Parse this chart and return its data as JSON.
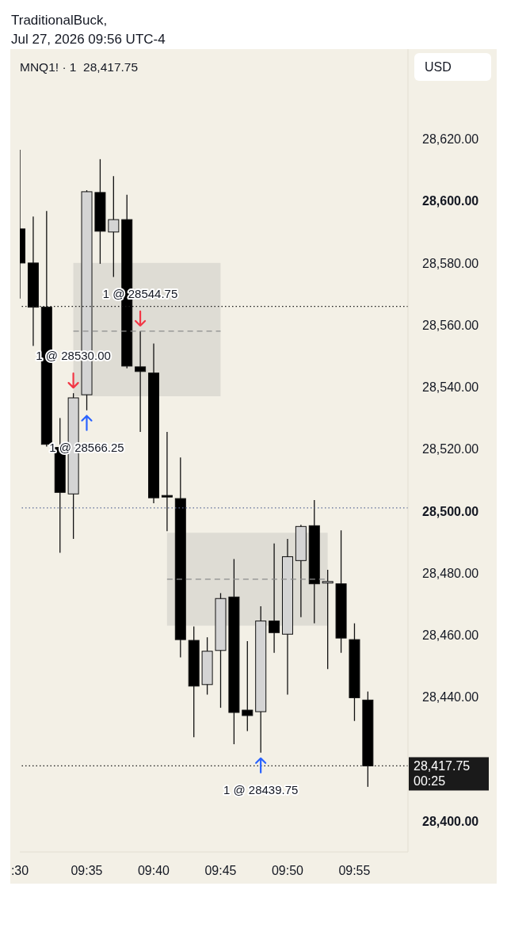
{
  "chart_data": {
    "type": "candlestick",
    "title": "MNQ1! · 1  28,417.75",
    "ylabel": "USD",
    "annotations": [
      "TraditionalBuck,",
      "Jul 27, 2026 09:56 UTC-4",
      {
        "text": "1 @ 28530.00",
        "x": "2026-07-27T09:34",
        "y": 28538
      },
      {
        "text": "1 @ 28566.25",
        "x": "2026-07-27T09:35",
        "y": 28532.5
      },
      {
        "text": "1 @ 28544.75",
        "x": "2026-07-27T09:39",
        "y": 28558
      },
      {
        "text": "1 @ 28439.75",
        "x": "2026-07-27T09:48",
        "y": 28422
      }
    ],
    "x": [
      "2026-07-27T09:30",
      "2026-07-27T09:31",
      "2026-07-27T09:32",
      "2026-07-27T09:33",
      "2026-07-27T09:34",
      "2026-07-27T09:35",
      "2026-07-27T09:36",
      "2026-07-27T09:37",
      "2026-07-27T09:38",
      "2026-07-27T09:39",
      "2026-07-27T09:40",
      "2026-07-27T09:41",
      "2026-07-27T09:42",
      "2026-07-27T09:43",
      "2026-07-27T09:44",
      "2026-07-27T09:45",
      "2026-07-27T09:46",
      "2026-07-27T09:47",
      "2026-07-27T09:48",
      "2026-07-27T09:49",
      "2026-07-27T09:50",
      "2026-07-27T09:51",
      "2026-07-27T09:52",
      "2026-07-27T09:53",
      "2026-07-27T09:54",
      "2026-07-27T09:55",
      "2026-07-27T09:56"
    ],
    "ohlc": [
      [
        28591,
        28616.5,
        28568.5,
        28580
      ],
      [
        28580,
        28595,
        28553.25,
        28565.75
      ],
      [
        28565.75,
        28596.75,
        28520.75,
        28521.5
      ],
      [
        28520.5,
        28530,
        28486.5,
        28506
      ],
      [
        28505.5,
        28538,
        28491,
        28536.5
      ],
      [
        28537.5,
        28603.5,
        28532.5,
        28603
      ],
      [
        28602.75,
        28613.5,
        28579.75,
        28590.25
      ],
      [
        28590,
        28608,
        28575.5,
        28594
      ],
      [
        28594,
        28602,
        28546,
        28546.75
      ],
      [
        28546.5,
        28558,
        28525.5,
        28545
      ],
      [
        28544.5,
        28554,
        28502.5,
        28504.25
      ],
      [
        28505,
        28525.5,
        28493.5,
        28504.5
      ],
      [
        28504,
        28517.25,
        28452.75,
        28458.5
      ],
      [
        28458.25,
        28462.75,
        28427,
        28443.5
      ],
      [
        28444,
        28459.25,
        28440.75,
        28454.75
      ],
      [
        28455,
        28473.5,
        28436.5,
        28471.75
      ],
      [
        28472.25,
        28484.5,
        28424.75,
        28435
      ],
      [
        28435.75,
        28458,
        28429,
        28434
      ],
      [
        28435.25,
        28469.25,
        28422,
        28464.5
      ],
      [
        28464.5,
        28489.5,
        28454.25,
        28460.75
      ],
      [
        28460.25,
        28491,
        28440.75,
        28485.25
      ],
      [
        28484,
        28495.5,
        28465.75,
        28495
      ],
      [
        28495.25,
        28503.5,
        28463.75,
        28476.5
      ],
      [
        28476.75,
        28481,
        28449,
        28477.25
      ],
      [
        28476.5,
        28493.75,
        28454.25,
        28459
      ],
      [
        28458.5,
        28463.75,
        28432.25,
        28439.75
      ],
      [
        28439,
        28441.75,
        28411,
        28417.75
      ]
    ],
    "colors": [
      "#000000",
      "#000000",
      "#000000",
      "#000000",
      "#d4d4d4",
      "#d4d4d4",
      "#000000",
      "#d4d4d4",
      "#000000",
      "#000000",
      "#000000",
      "#000000",
      "#000000",
      "#000000",
      "#d4d4d4",
      "#d4d4d4",
      "#000000",
      "#000000",
      "#d4d4d4",
      "#000000",
      "#d4d4d4",
      "#d4d4d4",
      "#000000",
      "#d4d4d4",
      "#000000",
      "#000000",
      "#000000"
    ],
    "series": [
      {
        "type": "line",
        "x": [
          "2026-07-27T09:34",
          "2026-07-27T09:45"
        ],
        "values": [
          28558,
          28558
        ],
        "lower": [
          28537,
          28537
        ],
        "upper": [
          28580,
          28580
        ],
        "color": "#8c8c8c",
        "line_style": "dashed"
      },
      {
        "type": "line",
        "x": [
          "2026-07-27T09:41",
          "2026-07-27T09:53"
        ],
        "values": [
          28478,
          28478
        ],
        "lower": [
          28463,
          28463
        ],
        "upper": [
          28493,
          28493
        ],
        "color": "#8c8c8c",
        "line_style": "dashed"
      }
    ],
    "ref_lines": [
      {
        "axis": "y",
        "value": 28566,
        "color": "#1a1a1a",
        "line_style": "dotted"
      },
      {
        "axis": "y",
        "value": 28501,
        "color": "#5d6b98",
        "line_style": "dotted"
      },
      {
        "axis": "y",
        "value": 28417.75,
        "label": "28,417.75\n00:25",
        "color": "#1a1a1a",
        "line_style": "dotted"
      }
    ],
    "xlim": [
      "2026-07-27T09:30",
      "2026-07-27T09:59"
    ],
    "xticks": [
      {
        "value": "2026-07-27T09:30",
        "label": ":30"
      },
      {
        "value": "2026-07-27T09:35",
        "label": "09:35"
      },
      {
        "value": "2026-07-27T09:40",
        "label": "09:40"
      },
      {
        "value": "2026-07-27T09:45",
        "label": "09:45"
      },
      {
        "value": "2026-07-27T09:50",
        "label": "09:50"
      },
      {
        "value": "2026-07-27T09:55",
        "label": "09:55"
      }
    ],
    "ylim": [
      28390,
      28649
    ],
    "yticks": [
      {
        "value": 28400,
        "label": "28,400.00"
      },
      {
        "value": 28440,
        "label": "28,440.00"
      },
      {
        "value": 28460,
        "label": "28,460.00"
      },
      {
        "value": 28480,
        "label": "28,480.00"
      },
      {
        "value": 28500,
        "label": "28,500.00"
      },
      {
        "value": 28520,
        "label": "28,520.00"
      },
      {
        "value": 28540,
        "label": "28,540.00"
      },
      {
        "value": 28560,
        "label": "28,560.00"
      },
      {
        "value": 28580,
        "label": "28,580.00"
      },
      {
        "value": 28600,
        "label": "28,600.00"
      },
      {
        "value": 28620,
        "label": "28,620.00"
      }
    ]
  }
}
